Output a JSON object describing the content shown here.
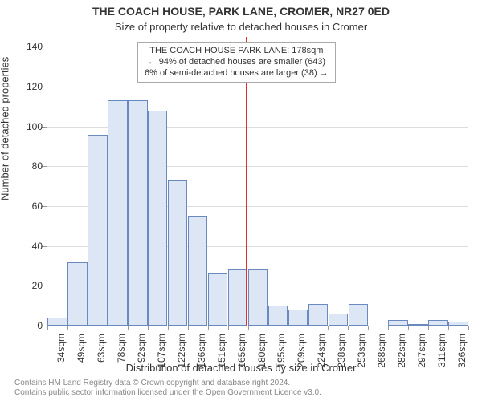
{
  "chart": {
    "type": "histogram",
    "title_main": "THE COACH HOUSE, PARK LANE, CROMER, NR27 0ED",
    "title_sub": "Size of property relative to detached houses in Cromer",
    "ylabel": "Number of detached properties",
    "xlabel": "Distribution of detached houses by size in Cromer",
    "title_fontsize": 14,
    "subtitle_fontsize": 13,
    "label_fontsize": 13,
    "tick_fontsize": 12,
    "annot_fontsize": 11,
    "footer_fontsize": 10,
    "background_color": "#ffffff",
    "grid_color": "#dddddd",
    "axis_color": "#999999",
    "bar_fill": "#dce6f5",
    "bar_stroke": "#6a89bf",
    "marker_color": "#e03030",
    "text_color": "#333333",
    "footer_color": "#888888",
    "ylim_min": 0,
    "ylim_max": 145,
    "ytick_step": 20,
    "yticks": [
      0,
      20,
      40,
      60,
      80,
      100,
      120,
      140
    ],
    "x_categories": [
      "34sqm",
      "49sqm",
      "63sqm",
      "78sqm",
      "92sqm",
      "107sqm",
      "122sqm",
      "136sqm",
      "151sqm",
      "165sqm",
      "180sqm",
      "195sqm",
      "209sqm",
      "224sqm",
      "238sqm",
      "253sqm",
      "268sqm",
      "282sqm",
      "297sqm",
      "311sqm",
      "326sqm"
    ],
    "bar_values": [
      4,
      32,
      96,
      113,
      113,
      108,
      73,
      55,
      26,
      28,
      28,
      10,
      8,
      11,
      6,
      11,
      0,
      3,
      1,
      3,
      2
    ],
    "marker_x_index": 10,
    "annotation": {
      "line1": "THE COACH HOUSE PARK LANE: 178sqm",
      "line2": "← 94% of detached houses are smaller (643)",
      "line3": "6% of semi-detached houses are larger (38) →",
      "border_color": "#aaaaaa"
    },
    "footer_line1": "Contains HM Land Registry data © Crown copyright and database right 2024.",
    "footer_line2": "Contains public sector information licensed under the Open Government Licence v3.0."
  }
}
